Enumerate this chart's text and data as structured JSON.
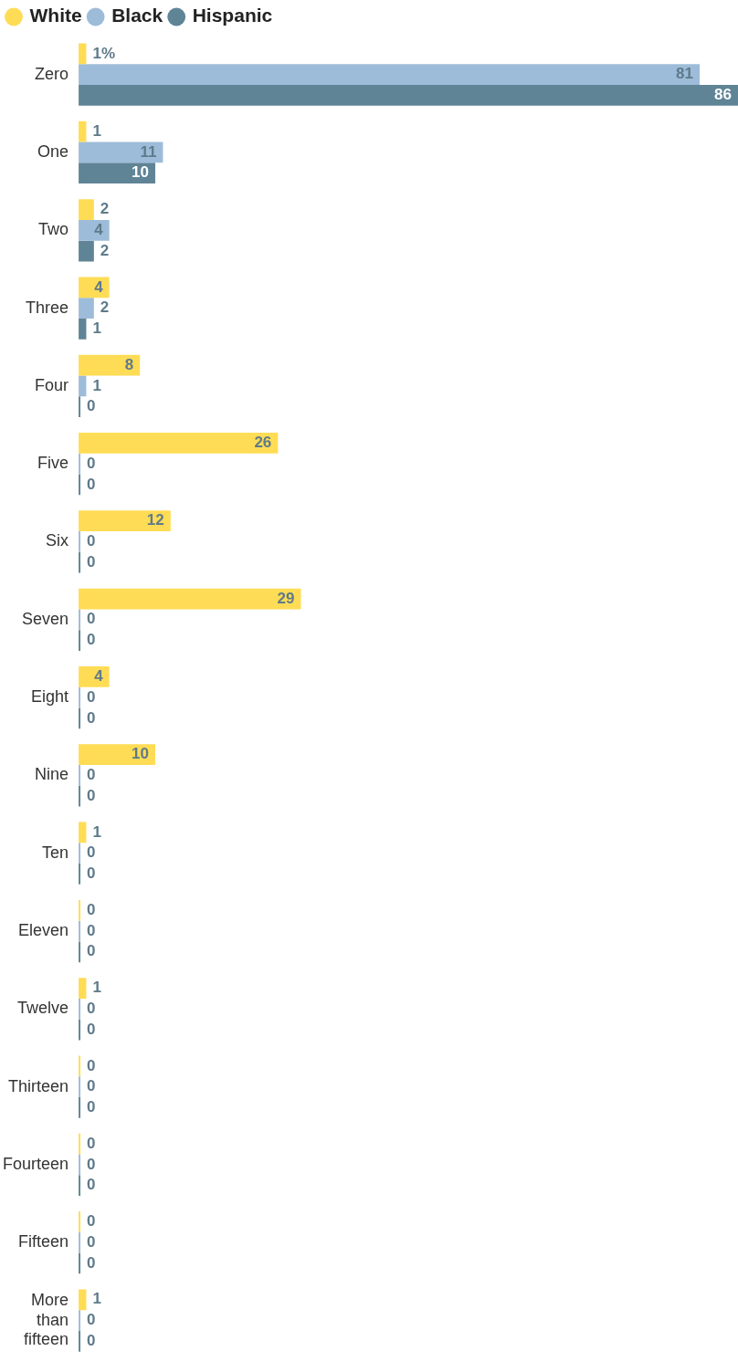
{
  "chart_data": {
    "type": "bar",
    "orientation": "horizontal",
    "legend": "top left",
    "tick_labels": "y",
    "xlim": [
      0,
      86
    ],
    "categories": [
      "Zero",
      "One",
      "Two",
      "Three",
      "Four",
      "Five",
      "Six",
      "Seven",
      "Eight",
      "Nine",
      "Ten",
      "Eleven",
      "Twelve",
      "Thirteen",
      "Fourteen",
      "Fifteen",
      "More than fifteen"
    ],
    "series": [
      {
        "name": "White",
        "color": "#ffdc55",
        "values": [
          1,
          1,
          2,
          4,
          8,
          26,
          12,
          29,
          4,
          10,
          1,
          0,
          1,
          0,
          0,
          0,
          1
        ],
        "value_labels": [
          "1%",
          "1",
          "2",
          "4",
          "8",
          "26",
          "12",
          "29",
          "4",
          "10",
          "1",
          "0",
          "1",
          "0",
          "0",
          "0",
          "1"
        ]
      },
      {
        "name": "Black",
        "color": "#9dbcd9",
        "values": [
          81,
          11,
          4,
          2,
          1,
          0,
          0,
          0,
          0,
          0,
          0,
          0,
          0,
          0,
          0,
          0,
          0
        ],
        "value_labels": [
          "81",
          "11",
          "4",
          "2",
          "1",
          "0",
          "0",
          "0",
          "0",
          "0",
          "0",
          "0",
          "0",
          "0",
          "0",
          "0",
          "0"
        ]
      },
      {
        "name": "Hispanic",
        "color": "#5f8496",
        "values": [
          86,
          10,
          2,
          1,
          0,
          0,
          0,
          0,
          0,
          0,
          0,
          0,
          0,
          0,
          0,
          0,
          0
        ],
        "value_labels": [
          "86",
          "10",
          "2",
          "1",
          "0",
          "0",
          "0",
          "0",
          "0",
          "0",
          "0",
          "0",
          "0",
          "0",
          "0",
          "0",
          "0"
        ]
      }
    ]
  }
}
